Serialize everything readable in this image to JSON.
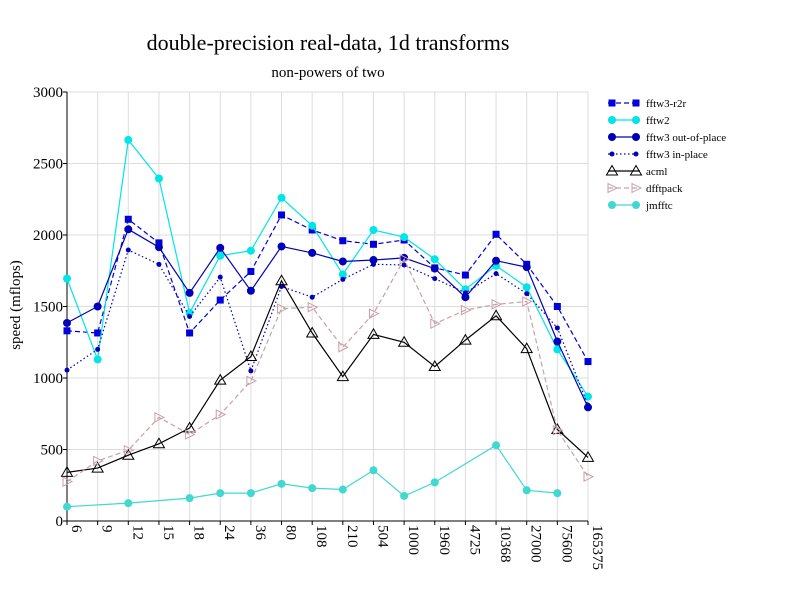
{
  "chart_data": {
    "type": "line",
    "title": "double-precision real-data, 1d transforms",
    "subtitle": "non-powers of two",
    "xlabel": "",
    "ylabel": "speed (mflops)",
    "ylim": [
      0,
      3000
    ],
    "yticks": [
      0,
      500,
      1000,
      1500,
      2000,
      2500,
      3000
    ],
    "grid": true,
    "legend_position": "right",
    "categories": [
      "6",
      "9",
      "12",
      "15",
      "18",
      "24",
      "36",
      "80",
      "108",
      "210",
      "504",
      "1000",
      "1960",
      "4725",
      "10368",
      "27000",
      "75600",
      "165375"
    ],
    "series": [
      {
        "name": "fftw3-r2r",
        "color": "#0000dd",
        "dash": "dashed",
        "marker": "square",
        "values": [
          1330,
          1315,
          2110,
          1945,
          1315,
          1545,
          1745,
          2140,
          2035,
          1960,
          1935,
          1965,
          1770,
          1720,
          2005,
          1795,
          1500,
          1115
        ]
      },
      {
        "name": "fftw2",
        "color": "#00e5e5",
        "dash": "solid",
        "marker": "circle",
        "values": [
          1695,
          1130,
          2665,
          2395,
          1455,
          1855,
          1890,
          2260,
          2065,
          1725,
          2035,
          1985,
          1830,
          1620,
          1785,
          1635,
          1200,
          870
        ]
      },
      {
        "name": "fftw3 out-of-place",
        "color": "#0000bb",
        "dash": "solid",
        "marker": "circle",
        "values": [
          1385,
          1500,
          2040,
          1915,
          1595,
          1910,
          1610,
          1920,
          1875,
          1815,
          1825,
          1840,
          1765,
          1565,
          1820,
          1775,
          1255,
          795
        ]
      },
      {
        "name": "fftw3 in-place",
        "color": "#0000bb",
        "dash": "dotted",
        "marker": "smalldot",
        "values": [
          1055,
          1200,
          1895,
          1795,
          1430,
          1705,
          1050,
          1640,
          1565,
          1690,
          1795,
          1790,
          1695,
          1595,
          1730,
          1590,
          1350,
          810
        ]
      },
      {
        "name": "acml",
        "color": "#000000",
        "dash": "solid",
        "marker": "triangle",
        "values": [
          340,
          370,
          460,
          540,
          650,
          985,
          1150,
          1680,
          1315,
          1010,
          1305,
          1250,
          1080,
          1265,
          1435,
          1205,
          640,
          445
        ]
      },
      {
        "name": "dfftpack",
        "color": "#c8a0a8",
        "dash": "dashed",
        "marker": "triangle-right",
        "values": [
          275,
          420,
          495,
          725,
          605,
          745,
          980,
          1485,
          1495,
          1215,
          1450,
          1830,
          1380,
          1475,
          1515,
          1535,
          635,
          310
        ]
      },
      {
        "name": "jmfftc",
        "color": "#40d8d0",
        "dash": "solid",
        "marker": "circle",
        "values": [
          100,
          null,
          125,
          null,
          160,
          195,
          195,
          260,
          230,
          220,
          355,
          175,
          270,
          null,
          530,
          215,
          195,
          null
        ]
      }
    ]
  }
}
